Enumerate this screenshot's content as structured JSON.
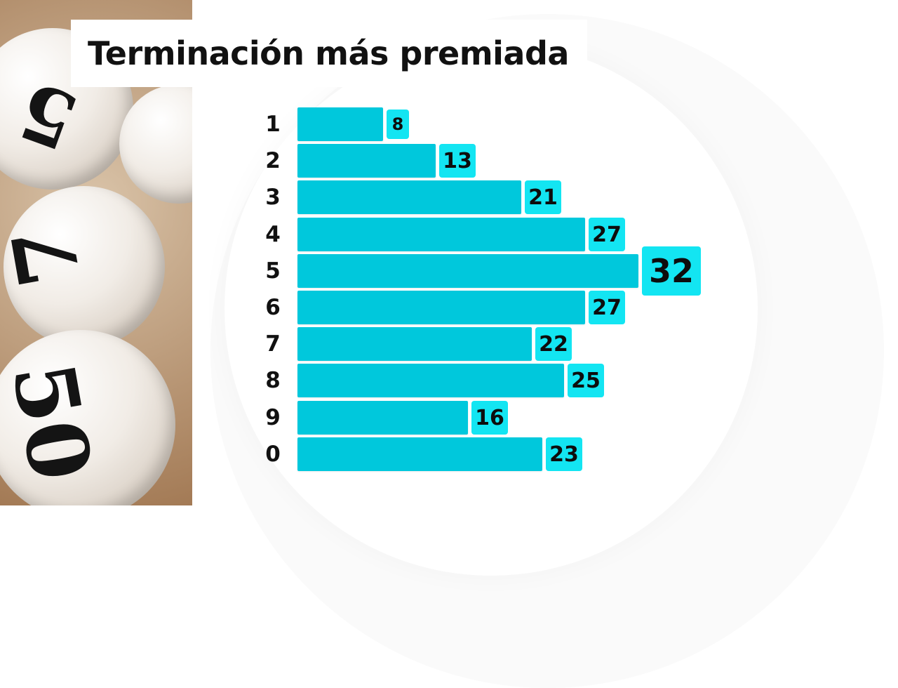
{
  "title": "Terminación más premiada",
  "colors": {
    "bar": "#00c8dc",
    "label_bg": "#13e5f2",
    "text": "#111111"
  },
  "photo": {
    "ball_numbers": [
      "5",
      "7",
      "50"
    ]
  },
  "chart_data": {
    "type": "bar",
    "orientation": "horizontal",
    "title": "Terminación más premiada",
    "categories": [
      "1",
      "2",
      "3",
      "4",
      "5",
      "6",
      "7",
      "8",
      "9",
      "0"
    ],
    "values": [
      8,
      13,
      21,
      27,
      32,
      27,
      22,
      25,
      16,
      23
    ],
    "highlight_max": true,
    "xlim": [
      0,
      32
    ]
  }
}
